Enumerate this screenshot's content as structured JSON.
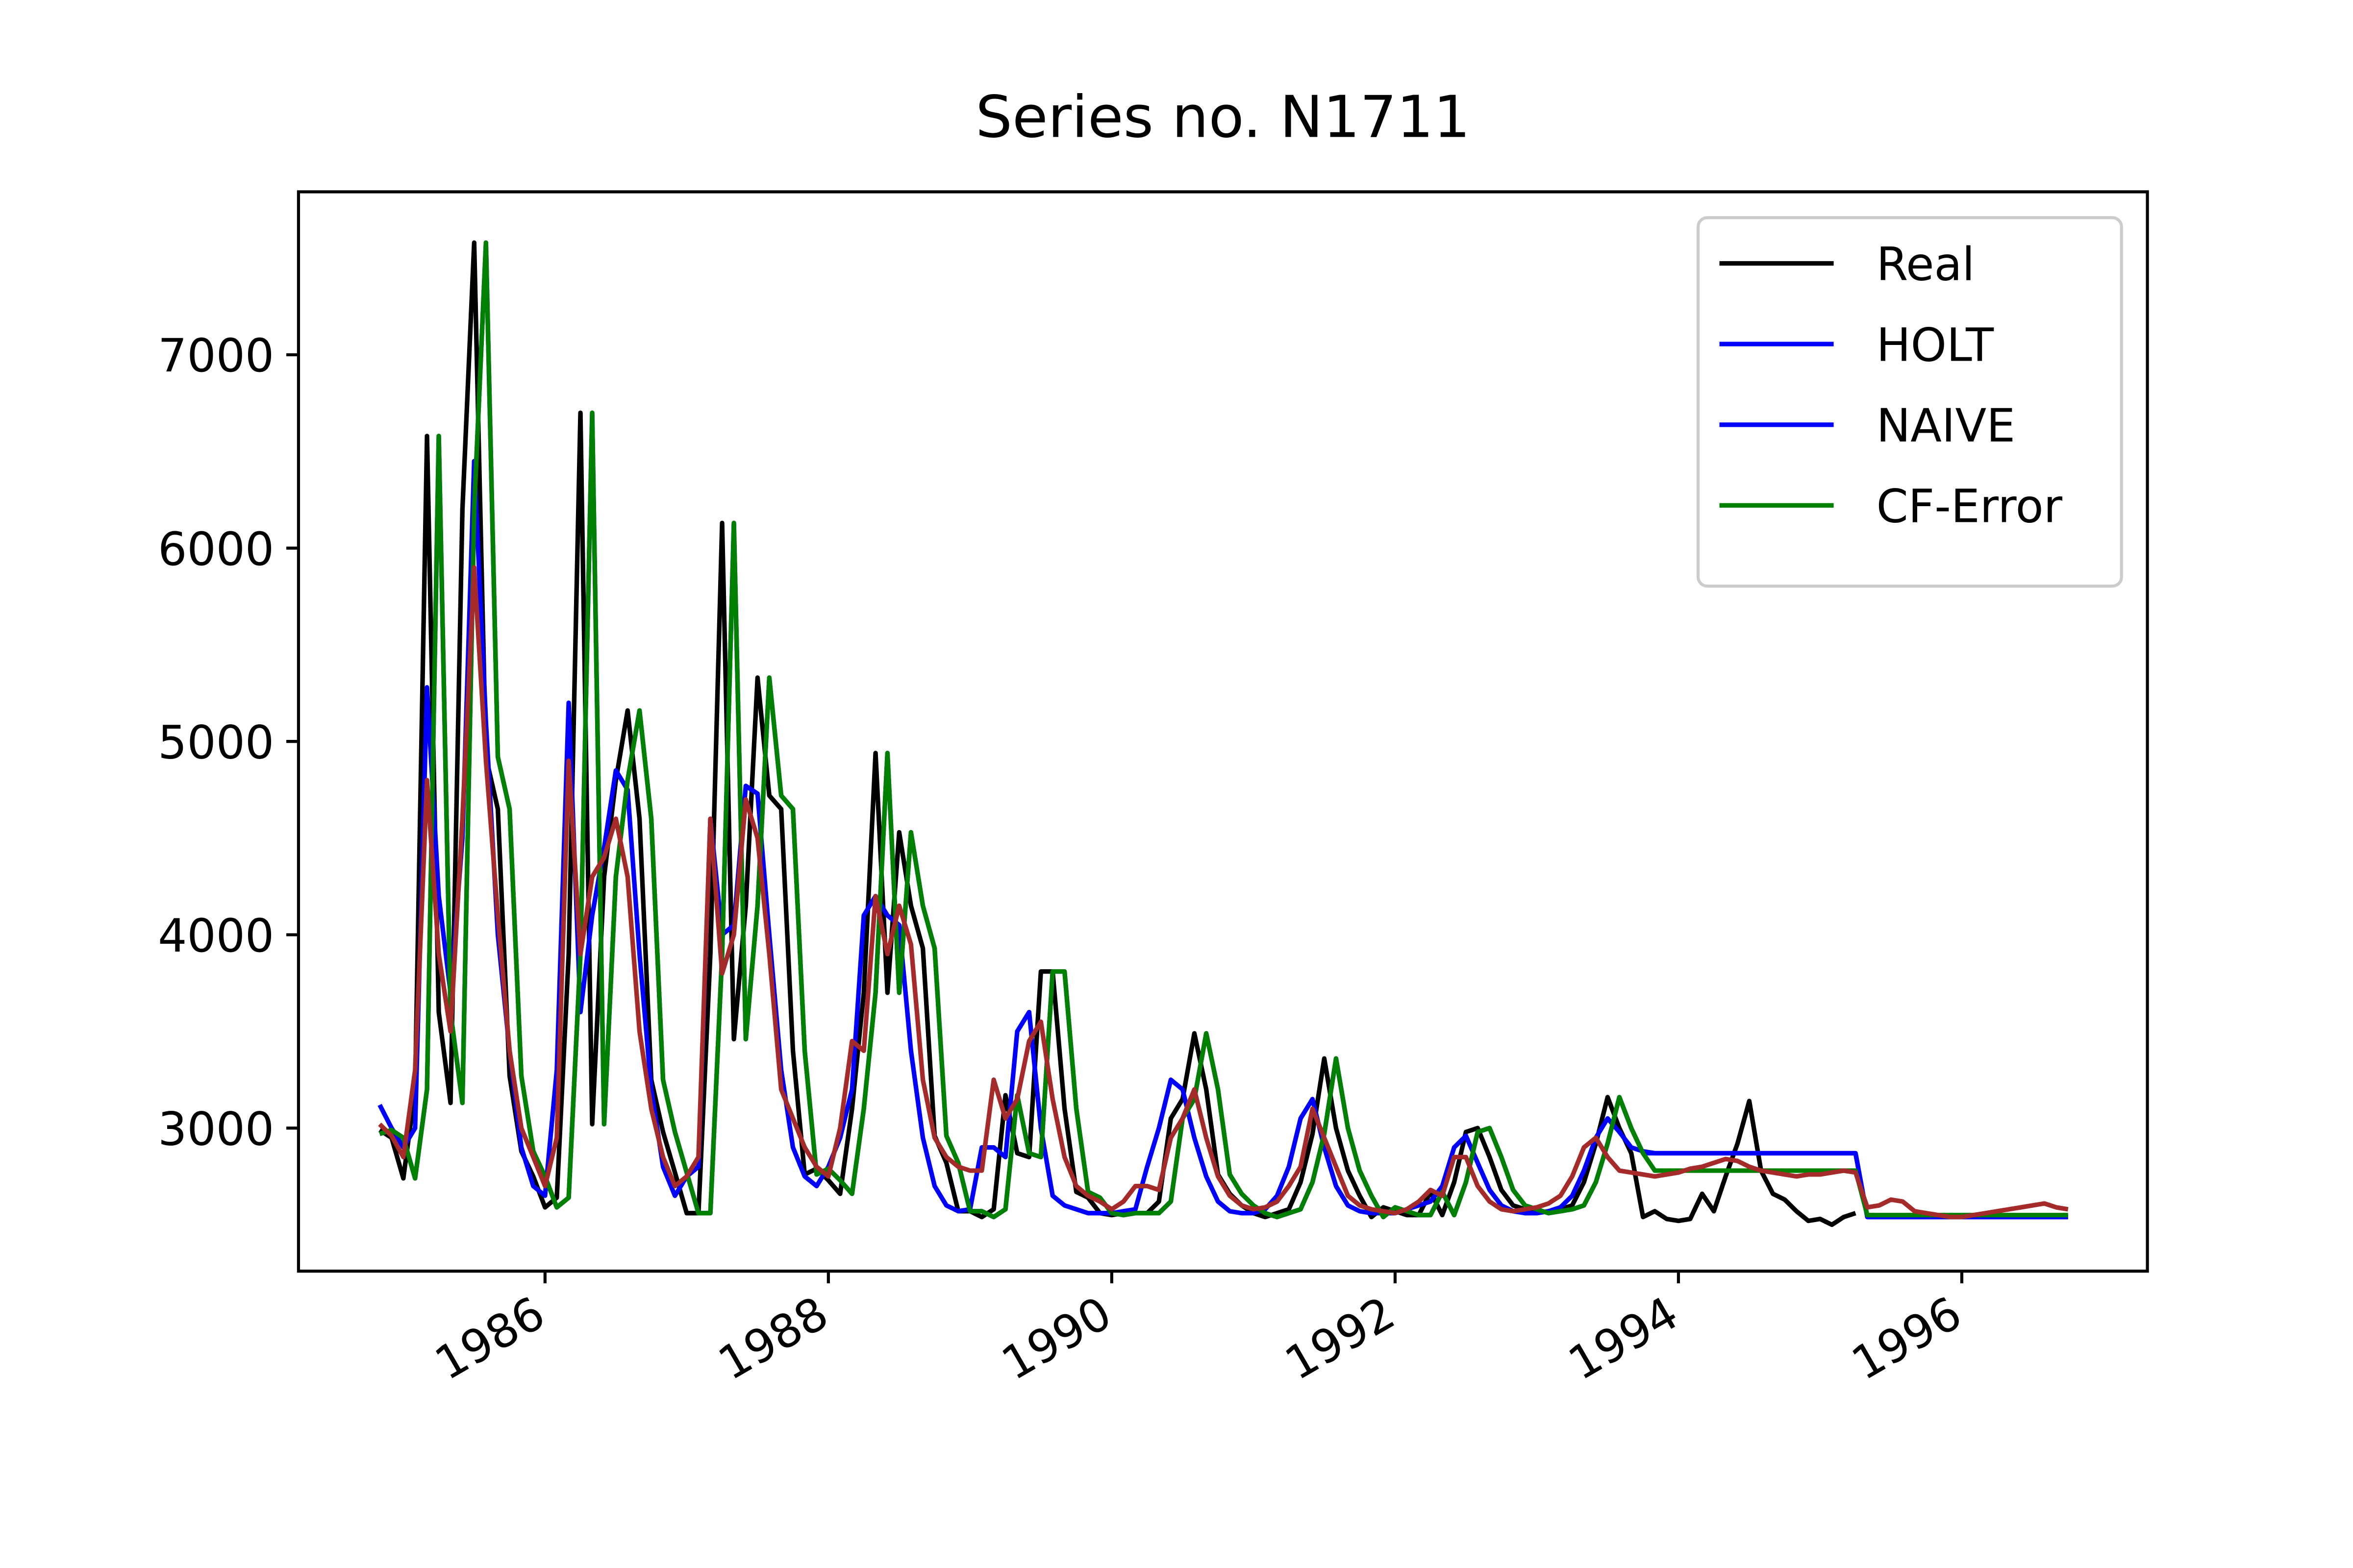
{
  "chart_data": {
    "type": "line",
    "title": "Series no. N1711",
    "x": [
      1984.833,
      1984.917,
      1985.0,
      1985.083,
      1985.167,
      1985.25,
      1985.333,
      1985.417,
      1985.5,
      1985.583,
      1985.667,
      1985.75,
      1985.833,
      1985.917,
      1986.0,
      1986.083,
      1986.167,
      1986.25,
      1986.333,
      1986.417,
      1986.5,
      1986.583,
      1986.667,
      1986.75,
      1986.833,
      1986.917,
      1987.0,
      1987.083,
      1987.167,
      1987.25,
      1987.333,
      1987.417,
      1987.5,
      1987.583,
      1987.667,
      1987.75,
      1987.833,
      1987.917,
      1988.0,
      1988.083,
      1988.167,
      1988.25,
      1988.333,
      1988.417,
      1988.5,
      1988.583,
      1988.667,
      1988.75,
      1988.833,
      1988.917,
      1989.0,
      1989.083,
      1989.167,
      1989.25,
      1989.333,
      1989.417,
      1989.5,
      1989.583,
      1989.667,
      1989.75,
      1989.833,
      1989.917,
      1990.0,
      1990.083,
      1990.167,
      1990.25,
      1990.333,
      1990.417,
      1990.5,
      1990.583,
      1990.667,
      1990.75,
      1990.833,
      1990.917,
      1991.0,
      1991.083,
      1991.167,
      1991.25,
      1991.333,
      1991.417,
      1991.5,
      1991.583,
      1991.667,
      1991.75,
      1991.833,
      1991.917,
      1992.0,
      1992.083,
      1992.167,
      1992.25,
      1992.333,
      1992.417,
      1992.5,
      1992.583,
      1992.667,
      1992.75,
      1992.833,
      1992.917,
      1993.0,
      1993.083,
      1993.167,
      1993.25,
      1993.333,
      1993.417,
      1993.5,
      1993.583,
      1993.667,
      1993.75,
      1993.833,
      1993.917,
      1994.0,
      1994.083,
      1994.167,
      1994.25,
      1994.333,
      1994.417,
      1994.5,
      1994.583,
      1994.667,
      1994.75,
      1994.833,
      1994.917,
      1995.0,
      1995.083,
      1995.167,
      1995.25,
      1995.333,
      1995.417,
      1995.5,
      1995.583,
      1995.667,
      1995.75,
      1995.833,
      1995.917,
      1996.0,
      1996.083,
      1996.167,
      1996.25,
      1996.333,
      1996.417,
      1996.5,
      1996.583,
      1996.667,
      1996.75
    ],
    "series": [
      {
        "name": "Real",
        "color": "#000000",
        "values": [
          2990,
          2950,
          2740,
          3200,
          6580,
          3600,
          3130,
          6200,
          7580,
          4920,
          4650,
          3270,
          2880,
          2750,
          2590,
          2640,
          3900,
          6700,
          3020,
          4300,
          4800,
          5160,
          4600,
          3250,
          2980,
          2770,
          2560,
          2560,
          3900,
          6130,
          3460,
          4150,
          5330,
          4720,
          4650,
          3400,
          2760,
          2790,
          2730,
          2660,
          3100,
          3700,
          4940,
          3700,
          4530,
          4150,
          3930,
          2960,
          2820,
          2570,
          2570,
          2540,
          2580,
          3170,
          2870,
          2850,
          3810,
          3810,
          3100,
          2670,
          2640,
          2560,
          2550,
          2560,
          2560,
          2560,
          2620,
          3050,
          3150,
          3490,
          3200,
          2760,
          2660,
          2600,
          2560,
          2540,
          2560,
          2580,
          2720,
          2970,
          3360,
          3000,
          2780,
          2650,
          2540,
          2590,
          2570,
          2550,
          2550,
          2670,
          2550,
          2720,
          2980,
          3000,
          2850,
          2680,
          2600,
          2580,
          2560,
          2570,
          2580,
          2600,
          2720,
          2920,
          3160,
          3000,
          2870,
          2540,
          2570,
          2530,
          2520,
          2530,
          2660,
          2570,
          2750,
          2920,
          3140,
          2780,
          2660,
          2630,
          2570,
          2520,
          2530,
          2500,
          2540,
          2560,
          null,
          null,
          null,
          null,
          null,
          null,
          null,
          null,
          null,
          null,
          null,
          null,
          null,
          null,
          null,
          null,
          null,
          null
        ]
      },
      {
        "name": "HOLT",
        "color": "#0000ff",
        "values": [
          3120,
          3000,
          2900,
          3000,
          5280,
          4200,
          3700,
          4500,
          6450,
          5100,
          4000,
          3400,
          2900,
          2700,
          2650,
          3300,
          5200,
          3600,
          4100,
          4450,
          4850,
          4750,
          3900,
          3200,
          2800,
          2650,
          2750,
          2800,
          4600,
          4000,
          4050,
          4770,
          4730,
          4000,
          3300,
          2900,
          2750,
          2700,
          2800,
          2950,
          3200,
          4100,
          4200,
          4100,
          4050,
          3400,
          2950,
          2700,
          2600,
          2570,
          2580,
          2900,
          2900,
          2850,
          3500,
          3600,
          3000,
          2650,
          2600,
          2580,
          2560,
          2560,
          2560,
          2570,
          2580,
          2800,
          3000,
          3250,
          3200,
          2950,
          2750,
          2620,
          2570,
          2560,
          2560,
          2580,
          2650,
          2800,
          3050,
          3150,
          2900,
          2700,
          2600,
          2570,
          2560,
          2560,
          2560,
          2580,
          2600,
          2620,
          2700,
          2900,
          2960,
          2820,
          2680,
          2600,
          2570,
          2560,
          2560,
          2570,
          2590,
          2650,
          2780,
          2950,
          3050,
          2980,
          2900,
          2880,
          2870,
          2870,
          2870,
          2870,
          2870,
          2870,
          2870,
          2870,
          2870,
          2870,
          2870,
          2870,
          2870,
          2870,
          2870,
          2870,
          2870,
          2870,
          2540,
          2540,
          2540,
          2540,
          2540,
          2540,
          2540,
          2540,
          2540,
          2540,
          2540,
          2540,
          2540,
          2540,
          2540,
          2540,
          2540,
          2540
        ]
      },
      {
        "name": "NAIVE",
        "color": "#0000ff",
        "values": [
          2970,
          2990,
          2950,
          2740,
          3200,
          6580,
          3600,
          3130,
          6200,
          7580,
          4920,
          4650,
          3270,
          2880,
          2750,
          2590,
          2640,
          3900,
          6700,
          3020,
          4300,
          4800,
          5160,
          4600,
          3250,
          2980,
          2770,
          2560,
          2560,
          3900,
          6130,
          3460,
          4150,
          5330,
          4720,
          4650,
          3400,
          2760,
          2790,
          2730,
          2660,
          3100,
          3700,
          4940,
          3700,
          4530,
          4150,
          3930,
          2960,
          2820,
          2570,
          2570,
          2540,
          2580,
          3170,
          2870,
          2850,
          3810,
          3810,
          3100,
          2670,
          2640,
          2560,
          2550,
          2560,
          2560,
          2560,
          2620,
          3050,
          3150,
          3490,
          3200,
          2760,
          2660,
          2600,
          2560,
          2540,
          2560,
          2580,
          2720,
          2970,
          3360,
          3000,
          2780,
          2650,
          2540,
          2590,
          2570,
          2550,
          2550,
          2670,
          2550,
          2720,
          2980,
          3000,
          2850,
          2680,
          2600,
          2580,
          2560,
          2570,
          2580,
          2600,
          2720,
          2920,
          3160,
          3000,
          2870,
          2870,
          2870,
          2870,
          2870,
          2870,
          2870,
          2870,
          2870,
          2870,
          2870,
          2870,
          2870,
          2870,
          2870,
          2870,
          2870,
          2870,
          2870,
          2540,
          2540,
          2540,
          2540,
          2540,
          2540,
          2540,
          2540,
          2540,
          2540,
          2540,
          2540,
          2540,
          2540,
          2540,
          2540,
          2540,
          2540
        ]
      },
      {
        "name": "CF-Error",
        "color": "#008000",
        "values": [
          2970,
          2990,
          2950,
          2740,
          3200,
          6580,
          3600,
          3130,
          6200,
          7580,
          4920,
          4650,
          3270,
          2880,
          2750,
          2590,
          2640,
          3900,
          6700,
          3020,
          4300,
          4800,
          5160,
          4600,
          3250,
          2980,
          2770,
          2560,
          2560,
          3900,
          6130,
          3460,
          4150,
          5330,
          4720,
          4650,
          3400,
          2760,
          2790,
          2730,
          2660,
          3100,
          3700,
          4940,
          3700,
          4530,
          4150,
          3930,
          2960,
          2820,
          2570,
          2570,
          2540,
          2580,
          3170,
          2870,
          2850,
          3810,
          3810,
          3100,
          2670,
          2640,
          2560,
          2550,
          2560,
          2560,
          2560,
          2620,
          3050,
          3150,
          3490,
          3200,
          2760,
          2660,
          2600,
          2560,
          2540,
          2560,
          2580,
          2720,
          2970,
          3360,
          3000,
          2780,
          2650,
          2540,
          2590,
          2570,
          2550,
          2550,
          2670,
          2550,
          2720,
          2980,
          3000,
          2850,
          2680,
          2600,
          2580,
          2560,
          2570,
          2580,
          2600,
          2720,
          2920,
          3160,
          3000,
          2870,
          2780,
          2780,
          2780,
          2780,
          2780,
          2780,
          2780,
          2780,
          2780,
          2780,
          2780,
          2780,
          2780,
          2780,
          2780,
          2780,
          2780,
          2780,
          2550,
          2550,
          2550,
          2550,
          2550,
          2550,
          2550,
          2550,
          2550,
          2550,
          2550,
          2550,
          2550,
          2550,
          2550,
          2550,
          2550,
          2550
        ]
      },
      {
        "color": "#a52a2a",
        "values": [
          3020,
          2960,
          2850,
          3300,
          4800,
          3900,
          3500,
          4600,
          5900,
          4900,
          4100,
          3400,
          3000,
          2850,
          2700,
          2950,
          4900,
          3900,
          4300,
          4400,
          4600,
          4300,
          3500,
          3100,
          2850,
          2700,
          2750,
          2850,
          4600,
          3800,
          4000,
          4700,
          4500,
          3900,
          3200,
          3050,
          2900,
          2800,
          2750,
          3000,
          3450,
          3400,
          4200,
          3900,
          4150,
          3950,
          3250,
          2950,
          2850,
          2800,
          2780,
          2780,
          3250,
          3050,
          3150,
          3450,
          3550,
          3150,
          2850,
          2700,
          2650,
          2620,
          2580,
          2620,
          2700,
          2700,
          2680,
          2950,
          3050,
          3200,
          2950,
          2750,
          2650,
          2600,
          2580,
          2590,
          2620,
          2700,
          2800,
          3100,
          2950,
          2800,
          2650,
          2600,
          2580,
          2570,
          2560,
          2580,
          2620,
          2680,
          2650,
          2850,
          2850,
          2700,
          2620,
          2580,
          2570,
          2580,
          2590,
          2610,
          2650,
          2750,
          2900,
          2950,
          2850,
          2780,
          2770,
          2760,
          2750,
          2760,
          2770,
          2790,
          2800,
          2820,
          2840,
          2830,
          2800,
          2780,
          2770,
          2760,
          2750,
          2760,
          2760,
          2770,
          2780,
          2770,
          2590,
          2600,
          2630,
          2620,
          2570,
          2560,
          2550,
          2540,
          2540,
          2550,
          2560,
          2570,
          2580,
          2590,
          2600,
          2610,
          2590,
          2580
        ]
      }
    ],
    "xlim": [
      1984.26,
      1997.31
    ],
    "ylim": [
      2260,
      7843
    ],
    "xticks": [
      1986,
      1988,
      1990,
      1992,
      1994,
      1996
    ],
    "yticks": [
      3000,
      4000,
      5000,
      6000,
      7000
    ],
    "grid": false,
    "legend": "upper-right"
  }
}
